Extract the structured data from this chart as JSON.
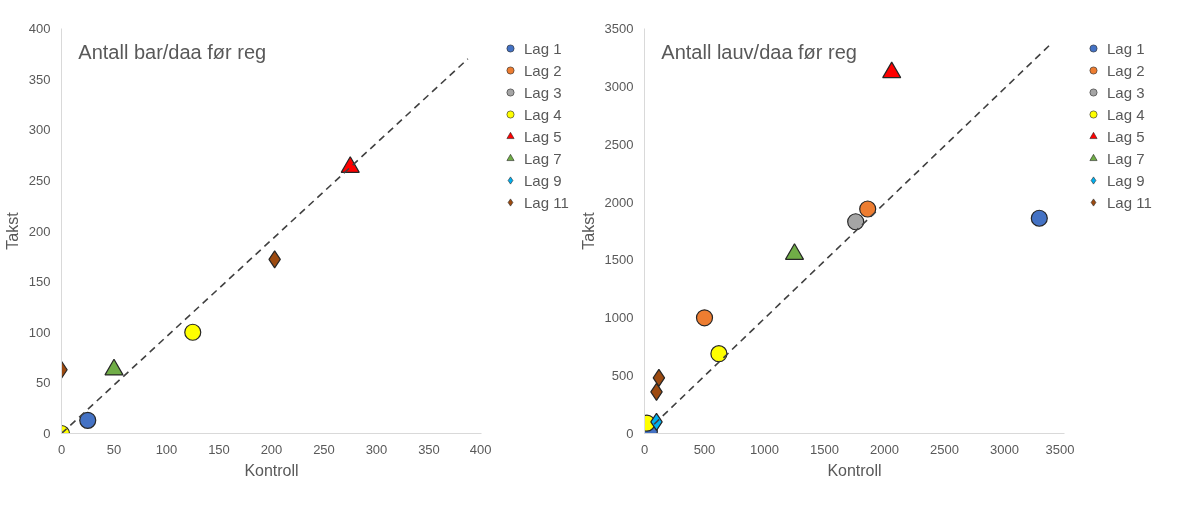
{
  "chart_data": [
    {
      "type": "scatter",
      "title": "Antall bar/daa før reg",
      "xlabel": "Kontroll",
      "ylabel": "Takst",
      "xlim": [
        0,
        400
      ],
      "ylim": [
        0,
        400
      ],
      "xticks": [
        0,
        50,
        100,
        150,
        200,
        250,
        300,
        350,
        400
      ],
      "yticks": [
        0,
        50,
        100,
        150,
        200,
        250,
        300,
        350,
        400
      ],
      "grid": false,
      "legend": "right",
      "series": [
        {
          "name": "Lag 1",
          "color": "#4472c4",
          "marker": "circle",
          "x": [
            25
          ],
          "values": [
            13
          ]
        },
        {
          "name": "Lag 2",
          "color": "#ed7d31",
          "marker": "circle",
          "x": [
            null
          ],
          "values": [
            null
          ]
        },
        {
          "name": "Lag 3",
          "color": "#a5a5a5",
          "marker": "circle",
          "x": [
            null
          ],
          "values": [
            null
          ]
        },
        {
          "name": "Lag 4",
          "color": "#ffff00",
          "marker": "circle",
          "x": [
            0,
            125
          ],
          "values": [
            0,
            100
          ]
        },
        {
          "name": "Lag 5",
          "color": "#ff0000",
          "marker": "triangle",
          "x": [
            275
          ],
          "values": [
            263
          ]
        },
        {
          "name": "Lag 7",
          "color": "#70ad47",
          "marker": "triangle",
          "x": [
            50
          ],
          "values": [
            63
          ]
        },
        {
          "name": "Lag 9",
          "color": "#00b0f0",
          "marker": "diamond",
          "x": [
            null
          ],
          "values": [
            null
          ]
        },
        {
          "name": "Lag 11",
          "color": "#9c4a10",
          "marker": "diamond",
          "x": [
            0,
            203
          ],
          "values": [
            63,
            172
          ]
        },
        {
          "type": "line",
          "color": "#404040",
          "line_style": "dashed",
          "marker": "none",
          "x": [
            0,
            387
          ],
          "values": [
            0,
            370
          ]
        }
      ]
    },
    {
      "type": "scatter",
      "title": "Antall lauv/daa før reg",
      "xlabel": "Kontroll",
      "ylabel": "Takst",
      "xlim": [
        0,
        3500
      ],
      "ylim": [
        0,
        3500
      ],
      "xticks": [
        0,
        500,
        1000,
        1500,
        2000,
        2500,
        3000,
        3500
      ],
      "yticks": [
        0,
        500,
        1000,
        1500,
        2000,
        2500,
        3000,
        3500
      ],
      "grid": false,
      "legend": "right",
      "series": [
        {
          "name": "Lag 1",
          "color": "#4472c4",
          "marker": "circle",
          "x": [
            40,
            3290
          ],
          "values": [
            20,
            1860
          ]
        },
        {
          "name": "Lag 2",
          "color": "#ed7d31",
          "marker": "circle",
          "x": [
            500,
            1860
          ],
          "values": [
            1000,
            1940
          ]
        },
        {
          "name": "Lag 3",
          "color": "#a5a5a5",
          "marker": "circle",
          "x": [
            1760
          ],
          "values": [
            1830
          ]
        },
        {
          "name": "Lag 4",
          "color": "#ffff00",
          "marker": "circle",
          "x": [
            20,
            620
          ],
          "values": [
            90,
            690
          ]
        },
        {
          "name": "Lag 5",
          "color": "#ff0000",
          "marker": "triangle",
          "x": [
            2060
          ],
          "values": [
            3120
          ]
        },
        {
          "name": "Lag 7",
          "color": "#70ad47",
          "marker": "triangle",
          "x": [
            1250
          ],
          "values": [
            1550
          ]
        },
        {
          "name": "Lag 9",
          "color": "#00b0f0",
          "marker": "diamond",
          "x": [
            100
          ],
          "values": [
            100
          ]
        },
        {
          "name": "Lag 11",
          "color": "#9c4a10",
          "marker": "diamond",
          "x": [
            120,
            100
          ],
          "values": [
            480,
            360
          ]
        },
        {
          "type": "line",
          "color": "#404040",
          "line_style": "dashed",
          "marker": "none",
          "x": [
            80,
            3380
          ],
          "values": [
            80,
            3360
          ]
        }
      ]
    }
  ]
}
